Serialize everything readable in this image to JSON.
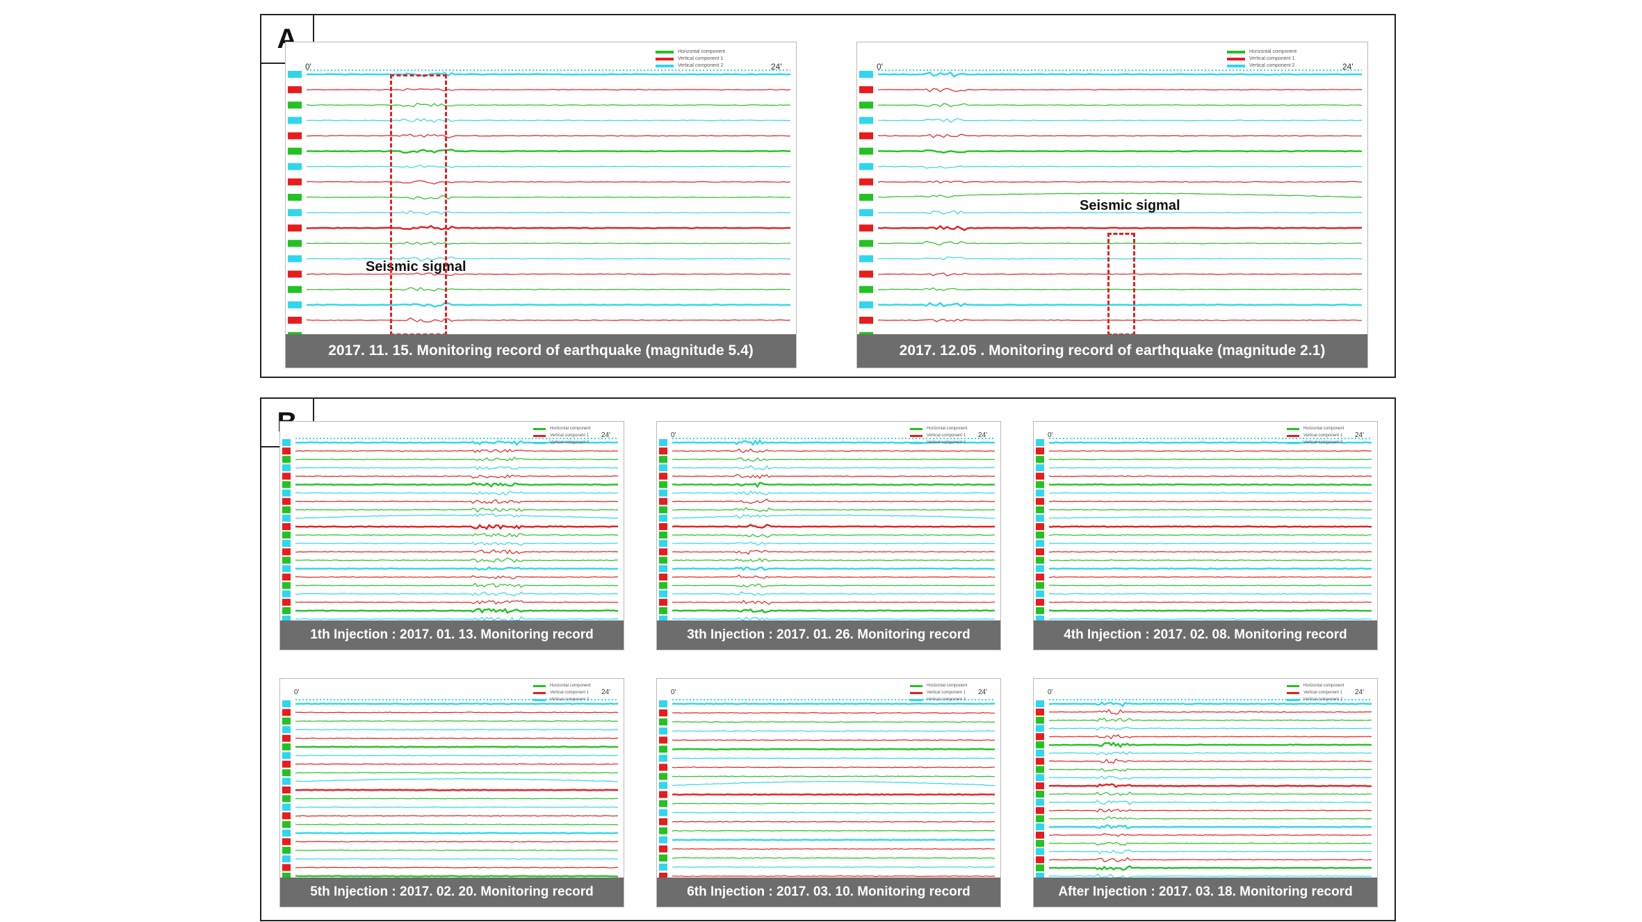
{
  "colors": {
    "horizontal": "#22c222",
    "vertical1": "#e81c1c",
    "vertical2": "#2fd6ee",
    "caption_bg": "#6d6d6d"
  },
  "legend": [
    "Horizontal component",
    "Vertical component 1",
    "Vertical component 2"
  ],
  "axis": {
    "start": "0'",
    "end": "24'"
  },
  "sectionA": {
    "label": "A",
    "panels": [
      {
        "caption": "2017. 11. 15. Monitoring record of earthquake (magnitude 5.4)",
        "annotation": "Seismic sigmal"
      },
      {
        "caption": "2017. 12.05 . Monitoring record of earthquake (magnitude 2.1)",
        "annotation": "Seismic sigmal"
      }
    ]
  },
  "sectionB": {
    "label": "B",
    "panels": [
      {
        "caption": "1th Injection : 2017. 01. 13. Monitoring record"
      },
      {
        "caption": "3th Injection : 2017. 01. 26. Monitoring record"
      },
      {
        "caption": "4th Injection : 2017. 02. 08. Monitoring record"
      },
      {
        "caption": "5th Injection : 2017. 02. 20. Monitoring record"
      },
      {
        "caption": "6th Injection : 2017. 03. 10. Monitoring record"
      },
      {
        "caption": "After Injection : 2017. 03. 18. Monitoring record"
      }
    ]
  }
}
